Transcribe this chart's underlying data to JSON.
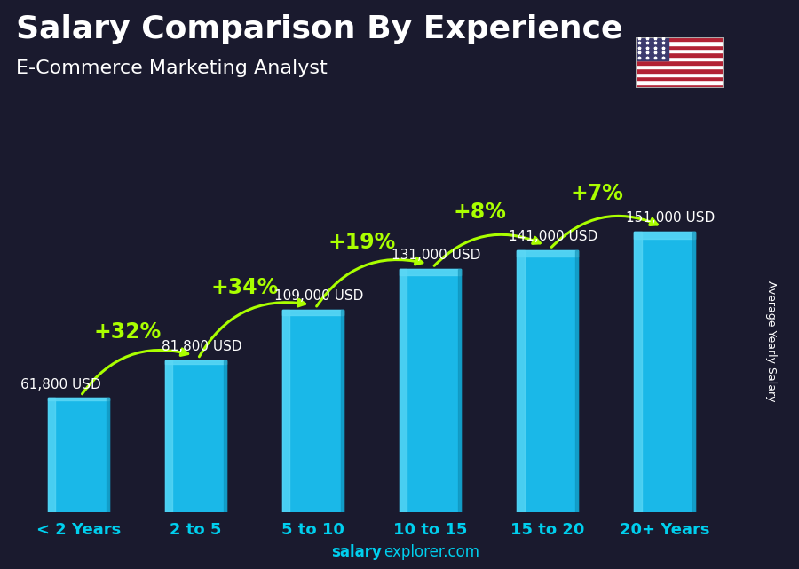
{
  "categories": [
    "< 2 Years",
    "2 to 5",
    "5 to 10",
    "10 to 15",
    "15 to 20",
    "20+ Years"
  ],
  "values": [
    61800,
    81800,
    109000,
    131000,
    141000,
    151000
  ],
  "value_labels": [
    "61,800 USD",
    "81,800 USD",
    "109,000 USD",
    "131,000 USD",
    "141,000 USD",
    "151,000 USD"
  ],
  "pct_labels": [
    "+32%",
    "+34%",
    "+19%",
    "+8%",
    "+7%"
  ],
  "bar_color_main": "#1ab8e8",
  "bar_color_light": "#5dd8f5",
  "bar_color_side": "#0e8ab0",
  "title": "Salary Comparison By Experience",
  "subtitle": "E-Commerce Marketing Analyst",
  "ylabel": "Average Yearly Salary",
  "footer_bold": "salary",
  "footer_normal": "explorer.com",
  "bg_color": "#1a1a2e",
  "text_color": "#ffffff",
  "pct_color": "#aaff00",
  "arrow_color": "#aaff00",
  "ylim": [
    0,
    190000
  ],
  "title_fontsize": 26,
  "subtitle_fontsize": 16,
  "cat_fontsize": 13,
  "val_fontsize": 11,
  "pct_fontsize": 17
}
